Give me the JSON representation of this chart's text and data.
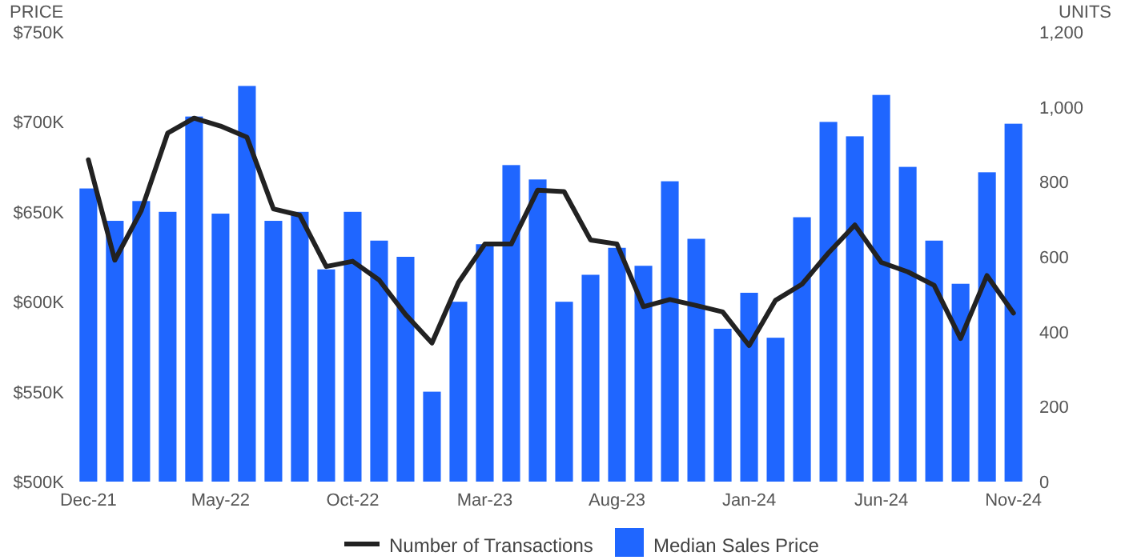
{
  "chart_data": {
    "type": "bar",
    "ylabel": "PRICE",
    "y2label": "UNITS",
    "categories": [
      "Dec-21",
      null,
      null,
      null,
      null,
      "May-22",
      null,
      null,
      null,
      null,
      "Oct-22",
      null,
      null,
      null,
      null,
      "Mar-23",
      null,
      null,
      null,
      null,
      "Aug-23",
      null,
      null,
      null,
      null,
      "Jan-24",
      null,
      null,
      null,
      null,
      "Jun-24",
      null,
      null,
      null,
      null,
      "Nov-24"
    ],
    "series": [
      {
        "name": "Number of Transactions",
        "type": "line",
        "axis": "y2",
        "color": "#222222",
        "values": [
          859,
          591,
          723,
          930,
          970,
          949,
          919,
          728,
          711,
          574,
          588,
          538,
          446,
          370,
          531,
          634,
          634,
          778,
          774,
          645,
          634,
          467,
          486,
          470,
          453,
          363,
          484,
          527,
          610,
          685,
          585,
          560,
          524,
          382,
          550,
          450
        ]
      },
      {
        "name": "Median Sales Price",
        "color": "#1f66ff",
        "values": [
          663000,
          645000,
          656000,
          650000,
          703000,
          649000,
          720000,
          645000,
          650000,
          618000,
          650000,
          634000,
          625000,
          550000,
          600000,
          632000,
          676000,
          668000,
          600000,
          615000,
          630000,
          620000,
          667000,
          635000,
          585000,
          605000,
          580000,
          647000,
          700000,
          692000,
          715000,
          675000,
          634000,
          610000,
          672000,
          699000
        ]
      }
    ],
    "ylim": [
      500000,
      750000
    ],
    "yticks": [
      {
        "value": 500000,
        "label": "$500K"
      },
      {
        "value": 550000,
        "label": "$550K"
      },
      {
        "value": 600000,
        "label": "$600K"
      },
      {
        "value": 650000,
        "label": "$650K"
      },
      {
        "value": 700000,
        "label": "$700K"
      },
      {
        "value": 750000,
        "label": "$750K"
      }
    ],
    "y2lim": [
      0,
      1200
    ],
    "y2ticks": [
      0,
      200,
      400,
      600,
      800,
      {
        "value": 1000,
        "label": "1,000"
      },
      {
        "value": 1200,
        "label": "1,200"
      }
    ],
    "grid": false,
    "legend": "bottom",
    "line_style": "solid",
    "marker": "none"
  }
}
